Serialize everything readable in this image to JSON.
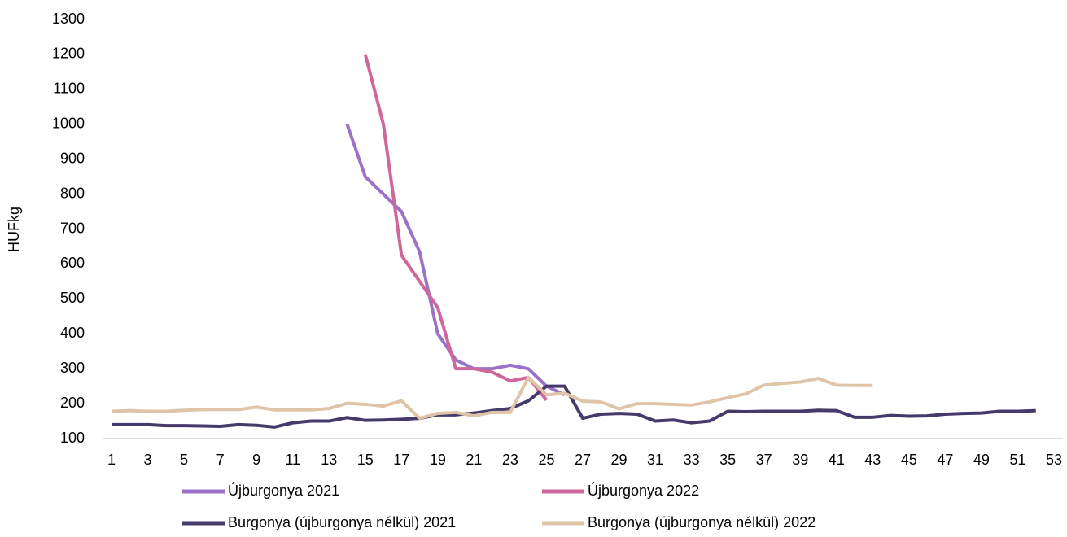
{
  "chart_data": {
    "type": "line",
    "y_label": "HUFkg",
    "x": [
      1,
      2,
      3,
      4,
      5,
      6,
      7,
      8,
      9,
      10,
      11,
      12,
      13,
      14,
      15,
      16,
      17,
      18,
      19,
      20,
      21,
      22,
      23,
      24,
      25,
      26,
      27,
      28,
      29,
      30,
      31,
      32,
      33,
      34,
      35,
      36,
      37,
      38,
      39,
      40,
      41,
      42,
      43,
      44,
      45,
      46,
      47,
      48,
      49,
      50,
      51,
      52
    ],
    "xlim": [
      1,
      53
    ],
    "xticks": [
      1,
      3,
      5,
      7,
      9,
      11,
      13,
      15,
      17,
      19,
      21,
      23,
      25,
      27,
      29,
      31,
      33,
      35,
      37,
      39,
      41,
      43,
      45,
      47,
      49,
      51,
      53
    ],
    "ylim": [
      100,
      1300
    ],
    "yticks": [
      100,
      200,
      300,
      400,
      500,
      600,
      700,
      800,
      900,
      1000,
      1100,
      1200,
      1300
    ],
    "series": [
      {
        "name": "Újburgonya 2021",
        "color": "#9b72c8",
        "values": [
          null,
          null,
          null,
          null,
          null,
          null,
          null,
          null,
          null,
          null,
          null,
          null,
          null,
          1000,
          850,
          800,
          750,
          635,
          400,
          325,
          300,
          300,
          310,
          300,
          250,
          225,
          null,
          null,
          null,
          null,
          null,
          null,
          null,
          null,
          null,
          null,
          null,
          null,
          null,
          null,
          null,
          null,
          null,
          null,
          null,
          null,
          null,
          null,
          null,
          null,
          null,
          null
        ]
      },
      {
        "name": "Újburgonya 2022",
        "color": "#d0679b",
        "values": [
          null,
          null,
          null,
          null,
          null,
          null,
          null,
          null,
          null,
          null,
          null,
          null,
          null,
          null,
          1200,
          1000,
          625,
          550,
          475,
          300,
          300,
          290,
          265,
          275,
          210,
          null,
          null,
          null,
          null,
          null,
          null,
          null,
          null,
          null,
          null,
          null,
          null,
          null,
          null,
          null,
          null,
          null,
          null,
          null,
          null,
          null,
          null,
          null,
          null,
          null,
          null,
          null
        ]
      },
      {
        "name": "Burgonya (újburgonya nélkül) 2021",
        "color": "#463a6b",
        "values": [
          140,
          140,
          140,
          137,
          137,
          136,
          135,
          140,
          138,
          133,
          145,
          150,
          150,
          160,
          152,
          153,
          155,
          158,
          168,
          168,
          173,
          180,
          186,
          208,
          250,
          250,
          158,
          170,
          172,
          170,
          150,
          153,
          145,
          150,
          178,
          177,
          178,
          178,
          178,
          181,
          180,
          161,
          161,
          166,
          164,
          165,
          170,
          172,
          173,
          178,
          178,
          180
        ]
      },
      {
        "name": "Burgonya (újburgonya nélkül) 2022",
        "color": "#e0c4a8",
        "values": [
          178,
          180,
          178,
          178,
          181,
          183,
          183,
          183,
          190,
          182,
          182,
          182,
          186,
          201,
          198,
          193,
          208,
          158,
          172,
          175,
          165,
          175,
          175,
          275,
          225,
          230,
          207,
          205,
          185,
          200,
          200,
          198,
          196,
          205,
          217,
          228,
          253,
          258,
          262,
          272,
          253,
          252,
          252,
          null,
          null,
          null,
          null,
          null,
          null,
          null,
          null,
          null
        ]
      }
    ]
  }
}
